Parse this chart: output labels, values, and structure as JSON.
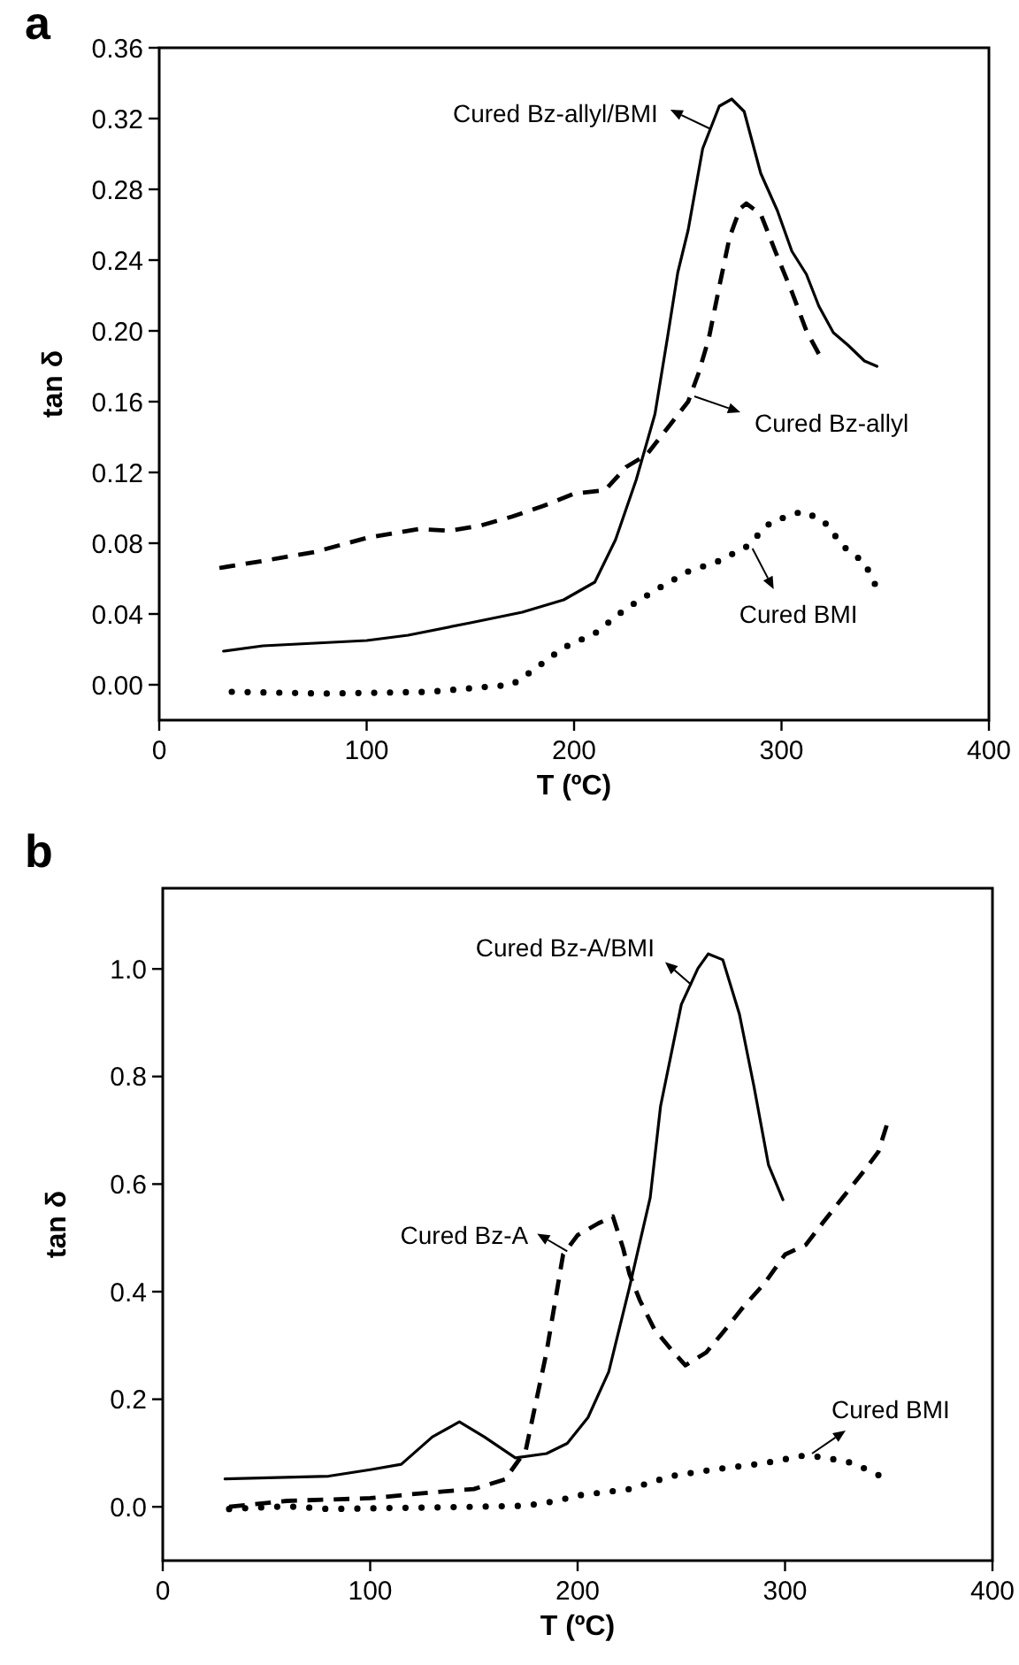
{
  "chart_data": [
    {
      "type": "line",
      "title": "a",
      "xlabel": "T (ºC)",
      "ylabel": "tan δ",
      "xlim": [
        0,
        400
      ],
      "xticks": [
        0,
        100,
        200,
        300,
        400
      ],
      "ylim": [
        -0.02,
        0.36
      ],
      "yticks": [
        {
          "value": 0,
          "label": "0.00"
        },
        {
          "value": 0.04,
          "label": "0.04"
        },
        {
          "value": 0.08,
          "label": "0.08"
        },
        {
          "value": 0.12,
          "label": "0.12"
        },
        {
          "value": 0.16,
          "label": "0.16"
        },
        {
          "value": 0.2,
          "label": "0.20"
        },
        {
          "value": 0.24,
          "label": "0.24"
        },
        {
          "value": 0.28,
          "label": "0.28"
        },
        {
          "value": 0.32,
          "label": "0.32"
        },
        {
          "value": 0.36,
          "label": "0.36"
        }
      ],
      "grid": false,
      "marker": "none",
      "series": [
        {
          "color": "#000000",
          "line_style": "solid",
          "x": [
            31,
            50,
            100,
            120,
            150,
            175,
            195,
            210,
            220,
            230,
            239,
            245,
            250,
            255,
            262,
            270,
            276,
            282,
            290,
            298,
            305,
            312,
            318,
            325,
            332,
            340,
            346
          ],
          "values": [
            0.019,
            0.022,
            0.025,
            0.028,
            0.035,
            0.041,
            0.048,
            0.058,
            0.082,
            0.116,
            0.153,
            0.196,
            0.233,
            0.257,
            0.303,
            0.327,
            0.331,
            0.324,
            0.289,
            0.268,
            0.245,
            0.232,
            0.214,
            0.199,
            0.192,
            0.183,
            0.18
          ]
        },
        {
          "color": "#000000",
          "line_style": "dashed",
          "x": [
            29,
            50,
            75,
            100,
            125,
            140,
            155,
            170,
            185,
            200,
            215,
            225,
            235,
            245,
            255,
            260,
            265,
            270,
            275,
            280,
            283,
            290,
            297,
            305,
            312,
            318
          ],
          "values": [
            0.066,
            0.07,
            0.075,
            0.083,
            0.088,
            0.087,
            0.09,
            0.095,
            0.101,
            0.108,
            0.11,
            0.123,
            0.13,
            0.145,
            0.16,
            0.176,
            0.196,
            0.225,
            0.253,
            0.269,
            0.272,
            0.266,
            0.245,
            0.222,
            0.2,
            0.187
          ]
        },
        {
          "color": "#000000",
          "line_style": "dotted",
          "x": [
            35,
            80,
            130,
            170,
            180,
            195,
            210,
            225,
            240,
            255,
            270,
            283,
            295,
            310,
            320,
            330,
            340,
            345
          ],
          "values": [
            -0.004,
            -0.005,
            -0.004,
            0,
            0.008,
            0.021,
            0.029,
            0.043,
            0.054,
            0.064,
            0.07,
            0.078,
            0.092,
            0.098,
            0.093,
            0.078,
            0.069,
            0.057
          ]
        }
      ],
      "annotations": [
        {
          "text": "Cured Bz-allyl/BMI",
          "x": 266,
          "y": 0.314
        },
        {
          "text": "Cured Bz-allyl",
          "x": 258,
          "y": 0.163
        },
        {
          "text": "Cured BMI",
          "x": 286,
          "y": 0.077
        }
      ]
    },
    {
      "type": "line",
      "title": "b",
      "xlabel": "T (ºC)",
      "ylabel": "tan δ",
      "xlim": [
        0,
        400
      ],
      "xticks": [
        0,
        100,
        200,
        300,
        400
      ],
      "ylim": [
        -0.1,
        1.15
      ],
      "yticks": [
        {
          "value": 0,
          "label": "0.0"
        },
        {
          "value": 0.2,
          "label": "0.2"
        },
        {
          "value": 0.4,
          "label": "0.4"
        },
        {
          "value": 0.6,
          "label": "0.6"
        },
        {
          "value": 0.8,
          "label": "0.8"
        },
        {
          "value": 1,
          "label": "1.0"
        }
      ],
      "grid": false,
      "marker": "none",
      "series": [
        {
          "color": "#000000",
          "line_style": "solid",
          "x": [
            30,
            80,
            100,
            115,
            130,
            143,
            155,
            170,
            185,
            195,
            205,
            215,
            225,
            235,
            240,
            250,
            258,
            263,
            270,
            278,
            285,
            292,
            299
          ],
          "values": [
            0.052,
            0.057,
            0.069,
            0.079,
            0.13,
            0.158,
            0.13,
            0.091,
            0.099,
            0.118,
            0.166,
            0.251,
            0.408,
            0.575,
            0.745,
            0.934,
            1.001,
            1.028,
            1.017,
            0.916,
            0.782,
            0.636,
            0.571
          ]
        },
        {
          "color": "#000000",
          "line_style": "dashed",
          "x": [
            32,
            60,
            100,
            130,
            150,
            165,
            175,
            185,
            193,
            200,
            210,
            217,
            222,
            225,
            230,
            237,
            245,
            252,
            262,
            270,
            280,
            290,
            300,
            310,
            318,
            328,
            338,
            345,
            349
          ],
          "values": [
            0,
            0.011,
            0.016,
            0.027,
            0.033,
            0.051,
            0.105,
            0.287,
            0.469,
            0.505,
            0.527,
            0.54,
            0.48,
            0.433,
            0.384,
            0.33,
            0.293,
            0.263,
            0.287,
            0.324,
            0.372,
            0.415,
            0.469,
            0.487,
            0.527,
            0.576,
            0.624,
            0.66,
            0.709
          ]
        },
        {
          "color": "#000000",
          "line_style": "dotted",
          "x": [
            32,
            60,
            80,
            150,
            175,
            190,
            200,
            225,
            245,
            265,
            290,
            310,
            320,
            333,
            345
          ],
          "values": [
            -0.004,
            0.001,
            -0.004,
            0,
            0.002,
            0.011,
            0.021,
            0.033,
            0.057,
            0.069,
            0.081,
            0.096,
            0.091,
            0.081,
            0.059
          ]
        }
      ],
      "annotations": [
        {
          "text": "Cured Bz-A/BMI",
          "x": 255,
          "y": 0.97
        },
        {
          "text": "Cured Bz-A",
          "x": 195,
          "y": 0.475
        },
        {
          "text": "Cured BMI",
          "x": 313,
          "y": 0.099
        }
      ]
    }
  ]
}
